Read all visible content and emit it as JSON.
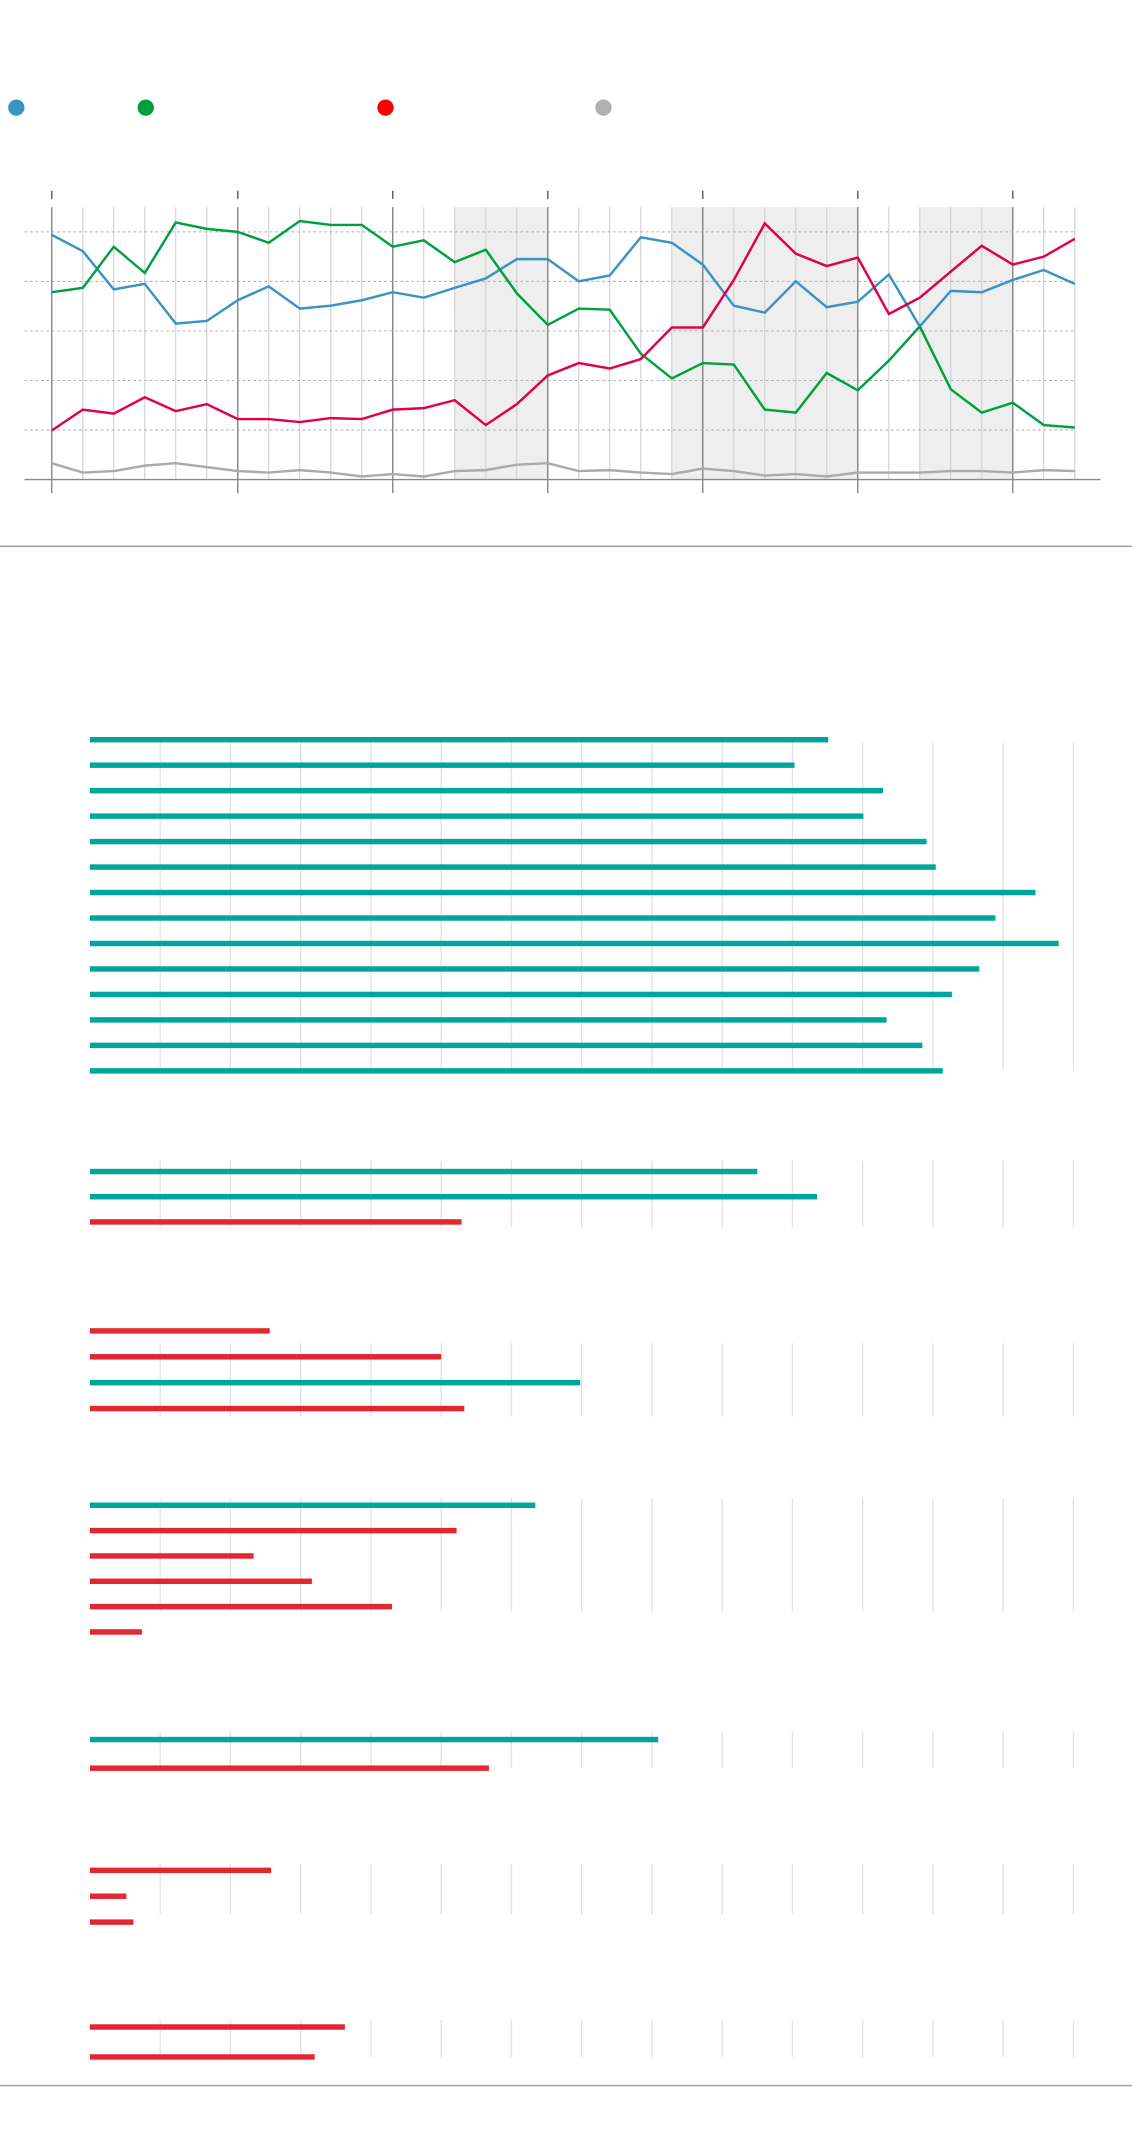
{
  "chart_data": [
    {
      "type": "line",
      "x": [
        0,
        1,
        2,
        3,
        4,
        5,
        6,
        7,
        8,
        9,
        10,
        11,
        12,
        13,
        14,
        15,
        16,
        17,
        18,
        19,
        20,
        21,
        22,
        23,
        24,
        25,
        26,
        27,
        28,
        29,
        30,
        31,
        32,
        33
      ],
      "xlim": [
        0,
        33
      ],
      "xticks": [
        0,
        6,
        11,
        16,
        21,
        26,
        31
      ],
      "ylim": [
        0,
        55
      ],
      "yticks": [
        0,
        10,
        20,
        30,
        40,
        50
      ],
      "grid": true,
      "shaded": [
        [
          13,
          16
        ],
        [
          20,
          26
        ],
        [
          28,
          31
        ]
      ],
      "series": [
        {
          "color": "#3a93c3",
          "values": [
            49.4,
            46.1,
            38.4,
            39.5,
            31.5,
            32,
            36.2,
            39,
            34.5,
            35.1,
            36.2,
            37.8,
            36.7,
            38.7,
            40.6,
            44.5,
            44.5,
            40,
            41.2,
            48.9,
            47.8,
            43.4,
            35.1,
            33.7,
            40,
            34.8,
            35.9,
            41.4,
            30.9,
            38.1,
            37.8,
            40.3,
            42.3,
            39.5
          ]
        },
        {
          "color": "#00a040",
          "values": [
            37.8,
            38.7,
            47,
            41.7,
            51.9,
            50.6,
            50,
            47.8,
            52.2,
            51.4,
            51.4,
            47,
            48.3,
            43.9,
            46.4,
            37.6,
            31.2,
            34.5,
            34.3,
            25.4,
            20.4,
            23.5,
            23.2,
            14.1,
            13.5,
            21.5,
            18,
            24,
            30.9,
            18.2,
            13.5,
            15.5,
            11,
            10.5
          ]
        },
        {
          "color": "#e0004d",
          "values": [
            9.9,
            14.1,
            13.3,
            16.6,
            13.8,
            15.2,
            12.2,
            12.2,
            11.6,
            12.4,
            12.2,
            14.1,
            14.4,
            16,
            11,
            15.2,
            21,
            23.5,
            22.4,
            24.3,
            30.7,
            30.7,
            40.3,
            51.7,
            45.6,
            43.1,
            44.8,
            33.4,
            36.7,
            42,
            47.2,
            43.4,
            45,
            48.6
          ]
        },
        {
          "color": "#aaaaaa",
          "values": [
            3.3,
            1.4,
            1.7,
            2.8,
            3.3,
            2.5,
            1.7,
            1.4,
            1.9,
            1.4,
            0.6,
            1.1,
            0.6,
            1.7,
            1.9,
            3,
            3.3,
            1.7,
            1.9,
            1.4,
            1.1,
            2.2,
            1.7,
            0.8,
            1.1,
            0.6,
            1.4,
            1.4,
            1.4,
            1.7,
            1.7,
            1.4,
            1.9,
            1.7
          ]
        }
      ],
      "legend_colors": [
        "#3a93c3",
        "#00a040",
        "#ff0000",
        "#b0b0b0"
      ]
    },
    {
      "type": "hbar",
      "xlim": [
        0,
        140
      ],
      "xticks": [
        10,
        20,
        30,
        40,
        50,
        60,
        70,
        80,
        90,
        100,
        110,
        120,
        130,
        140
      ],
      "values": [
        105.1,
        100.3,
        112.9,
        110.1,
        119.1,
        120.4,
        134.6,
        128.9,
        137.9,
        126.6,
        122.7,
        113.4,
        118.5,
        121.4
      ],
      "colors": [
        "#00a59b",
        "#00a59b",
        "#00a59b",
        "#00a59b",
        "#00a59b",
        "#00a59b",
        "#00a59b",
        "#00a59b",
        "#00a59b",
        "#00a59b",
        "#00a59b",
        "#00a59b",
        "#00a59b",
        "#00a59b"
      ]
    },
    {
      "type": "hbar",
      "xlim": [
        0,
        140
      ],
      "xticks": [
        10,
        20,
        30,
        40,
        50,
        60,
        70,
        80,
        90,
        100,
        110,
        120,
        130,
        140
      ],
      "values": [
        95,
        103.5,
        52.9
      ],
      "colors": [
        "#00a59b",
        "#00a59b",
        "#e3262f"
      ]
    },
    {
      "type": "hbar",
      "xlim": [
        0,
        140
      ],
      "xticks": [
        10,
        20,
        30,
        40,
        50,
        60,
        70,
        80,
        90,
        100,
        110,
        120,
        130,
        140
      ],
      "values": [
        25.6,
        50,
        69.8,
        53.3
      ],
      "colors": [
        "#e3262f",
        "#e3262f",
        "#00a59b",
        "#e3262f"
      ]
    },
    {
      "type": "hbar",
      "xlim": [
        0,
        140
      ],
      "xticks": [
        10,
        20,
        30,
        40,
        50,
        60,
        70,
        80,
        90,
        100,
        110,
        120,
        130,
        140
      ],
      "values": [
        63.4,
        52.2,
        23.3,
        31.6,
        43,
        7.4
      ],
      "colors": [
        "#00a59b",
        "#e3262f",
        "#e3262f",
        "#e3262f",
        "#e3262f",
        "#e3262f"
      ]
    },
    {
      "type": "hbar",
      "xlim": [
        0,
        140
      ],
      "xticks": [
        10,
        20,
        30,
        40,
        50,
        60,
        70,
        80,
        90,
        100,
        110,
        120,
        130,
        140
      ],
      "values": [
        80.9,
        56.8
      ],
      "colors": [
        "#00a59b",
        "#e3262f"
      ]
    },
    {
      "type": "hbar",
      "xlim": [
        0,
        140
      ],
      "xticks": [
        10,
        20,
        30,
        40,
        50,
        60,
        70,
        80,
        90,
        100,
        110,
        120,
        130,
        140
      ],
      "values": [
        25.8,
        5.2,
        6.2
      ],
      "colors": [
        "#e3262f",
        "#e3262f",
        "#e3262f"
      ]
    },
    {
      "type": "hbar",
      "xlim": [
        0,
        140
      ],
      "xticks": [
        10,
        20,
        30,
        40,
        50,
        60,
        70,
        80,
        90,
        100,
        110,
        120,
        130,
        140
      ],
      "values": [
        36.3,
        32
      ],
      "colors": [
        "#e3262f",
        "#e3262f"
      ]
    }
  ]
}
